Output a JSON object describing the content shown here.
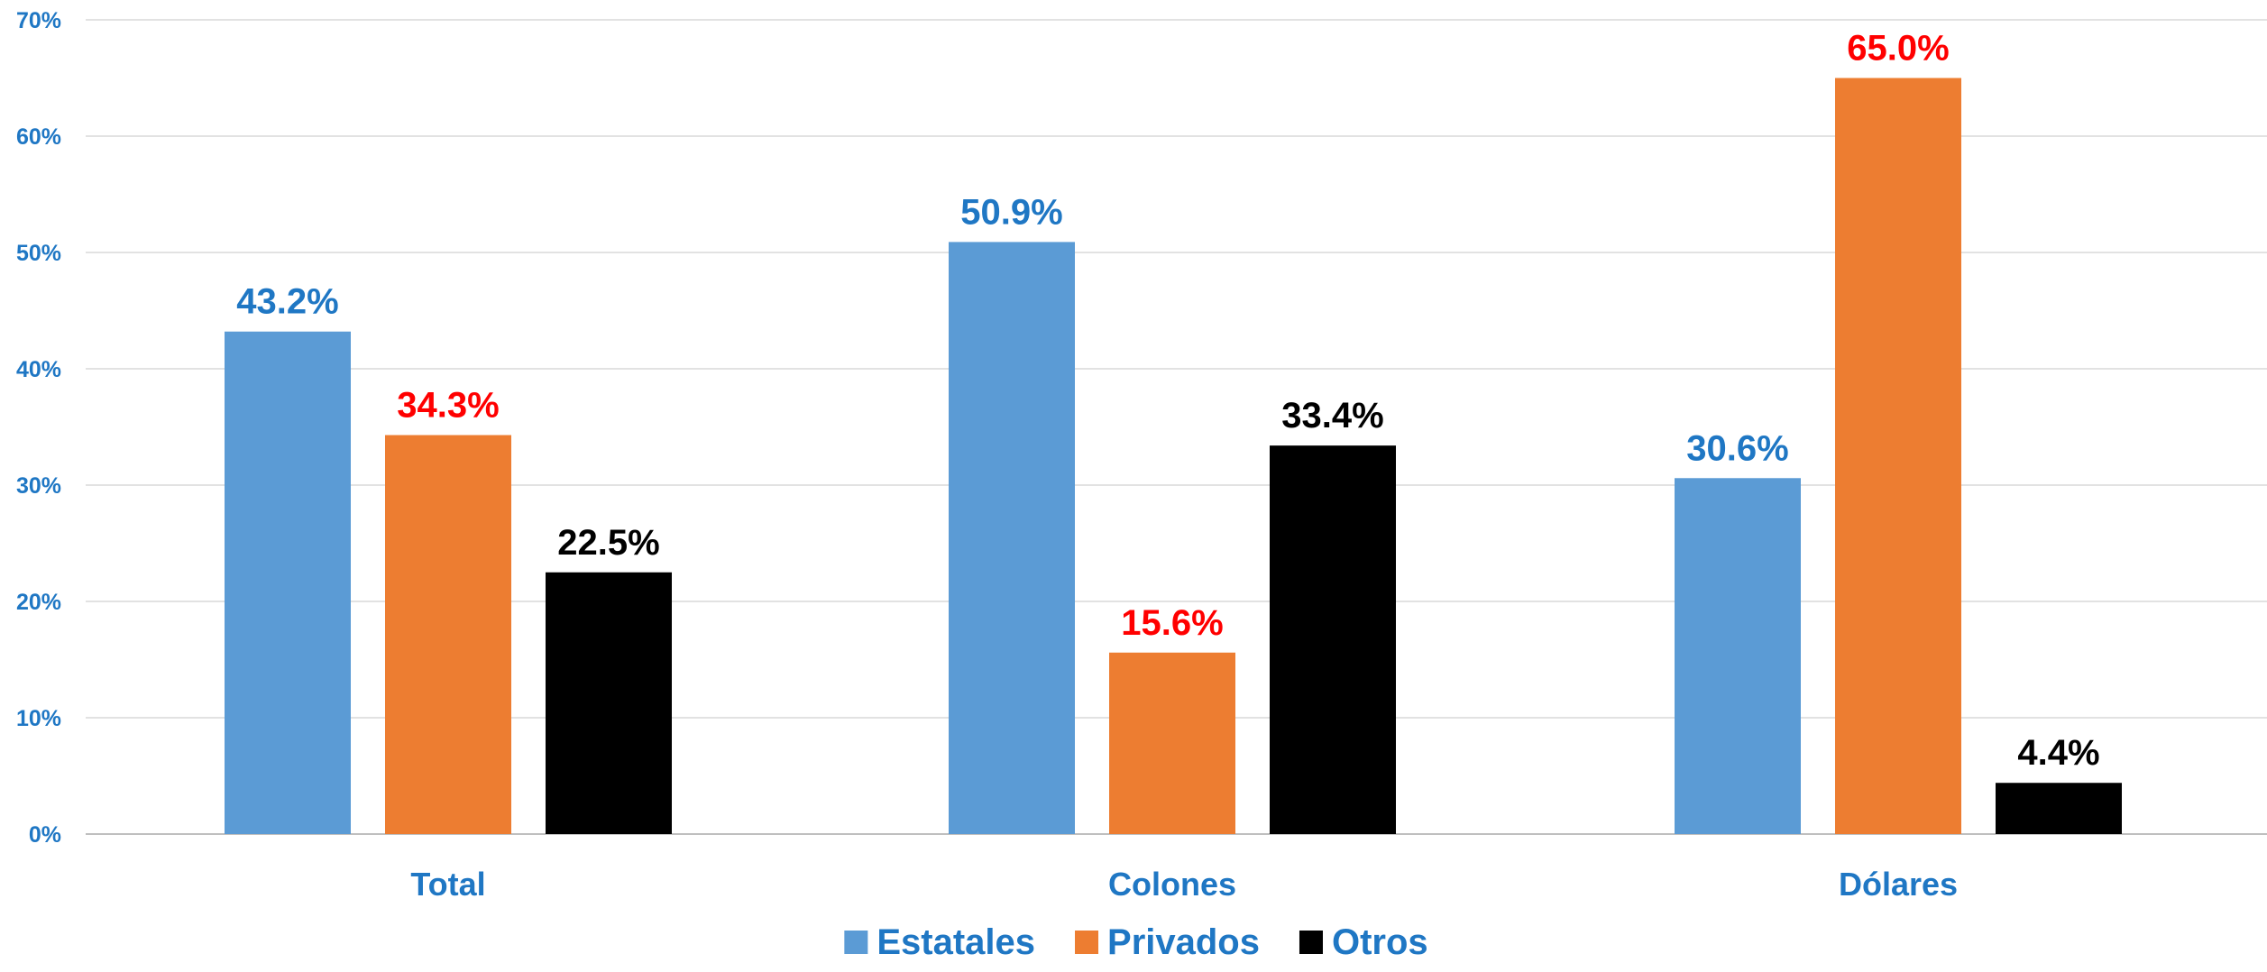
{
  "chart_data": {
    "type": "bar",
    "title": "",
    "xlabel": "",
    "ylabel": "",
    "categories": [
      "Total",
      "Colones",
      "Dólares"
    ],
    "ylim": [
      0,
      70
    ],
    "yticks": [
      0,
      10,
      20,
      30,
      40,
      50,
      60,
      70
    ],
    "ytick_labels": [
      "0%",
      "10%",
      "20%",
      "30%",
      "40%",
      "50%",
      "60%",
      "70%"
    ],
    "grid": true,
    "legend_position": "bottom",
    "series": [
      {
        "name": "Estatales",
        "values": [
          43.2,
          50.9,
          30.6
        ],
        "labels": [
          "43.2%",
          "50.9%",
          "30.6%"
        ],
        "color": "#5b9bd5",
        "label_color": "#1f77c4"
      },
      {
        "name": "Privados",
        "values": [
          34.3,
          15.6,
          65.0
        ],
        "labels": [
          "34.3%",
          "15.6%",
          "65.0%"
        ],
        "color": "#ed7d31",
        "label_color": "#ff0000"
      },
      {
        "name": "Otros",
        "values": [
          22.5,
          33.4,
          4.4
        ],
        "labels": [
          "22.5%",
          "33.4%",
          "4.4%"
        ],
        "color": "#000000",
        "label_color": "#000000"
      }
    ]
  },
  "colors": {
    "axis_text": "#1f77c4",
    "gridline": "#d9d9d9",
    "baseline": "#bfbfbf",
    "legend_text": "#1f77c4"
  }
}
